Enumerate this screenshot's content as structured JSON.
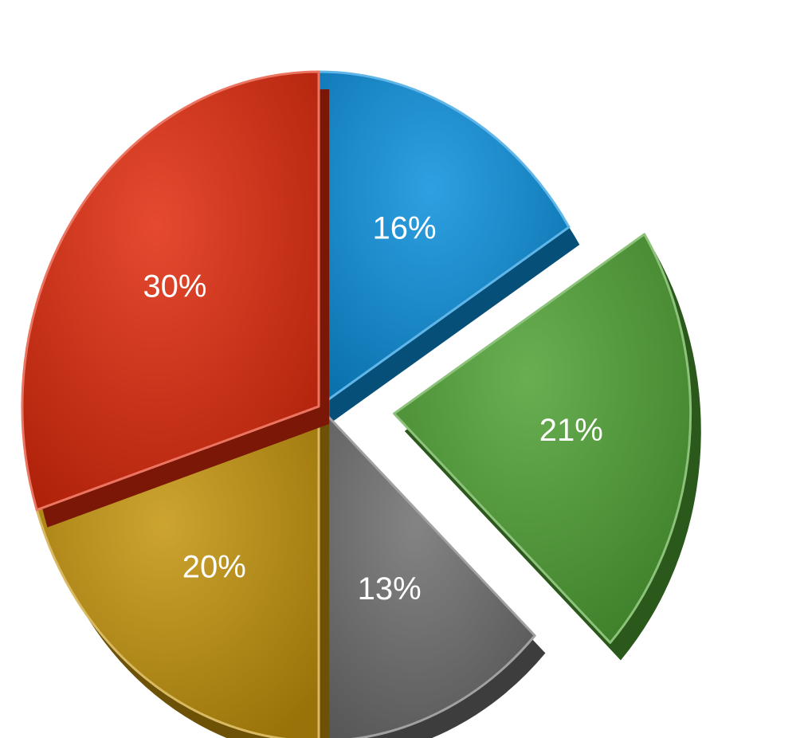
{
  "chart_data": {
    "type": "pie",
    "style": "3d-exploded",
    "title": "",
    "start_angle": "12 o'clock",
    "direction": "clockwise",
    "slices": [
      {
        "label": "16%",
        "value": 16,
        "color": "#0a8fdc",
        "exploded": false
      },
      {
        "label": "21%",
        "value": 21,
        "color": "#4ea133",
        "exploded": true
      },
      {
        "label": "13%",
        "value": 13,
        "color": "#6e6e6e",
        "exploded": false
      },
      {
        "label": "20%",
        "value": 20,
        "color": "#c4940c",
        "exploded": false
      },
      {
        "label": "30%",
        "value": 30,
        "color": "#e02a0c",
        "exploded": false
      }
    ],
    "legend": "none"
  }
}
